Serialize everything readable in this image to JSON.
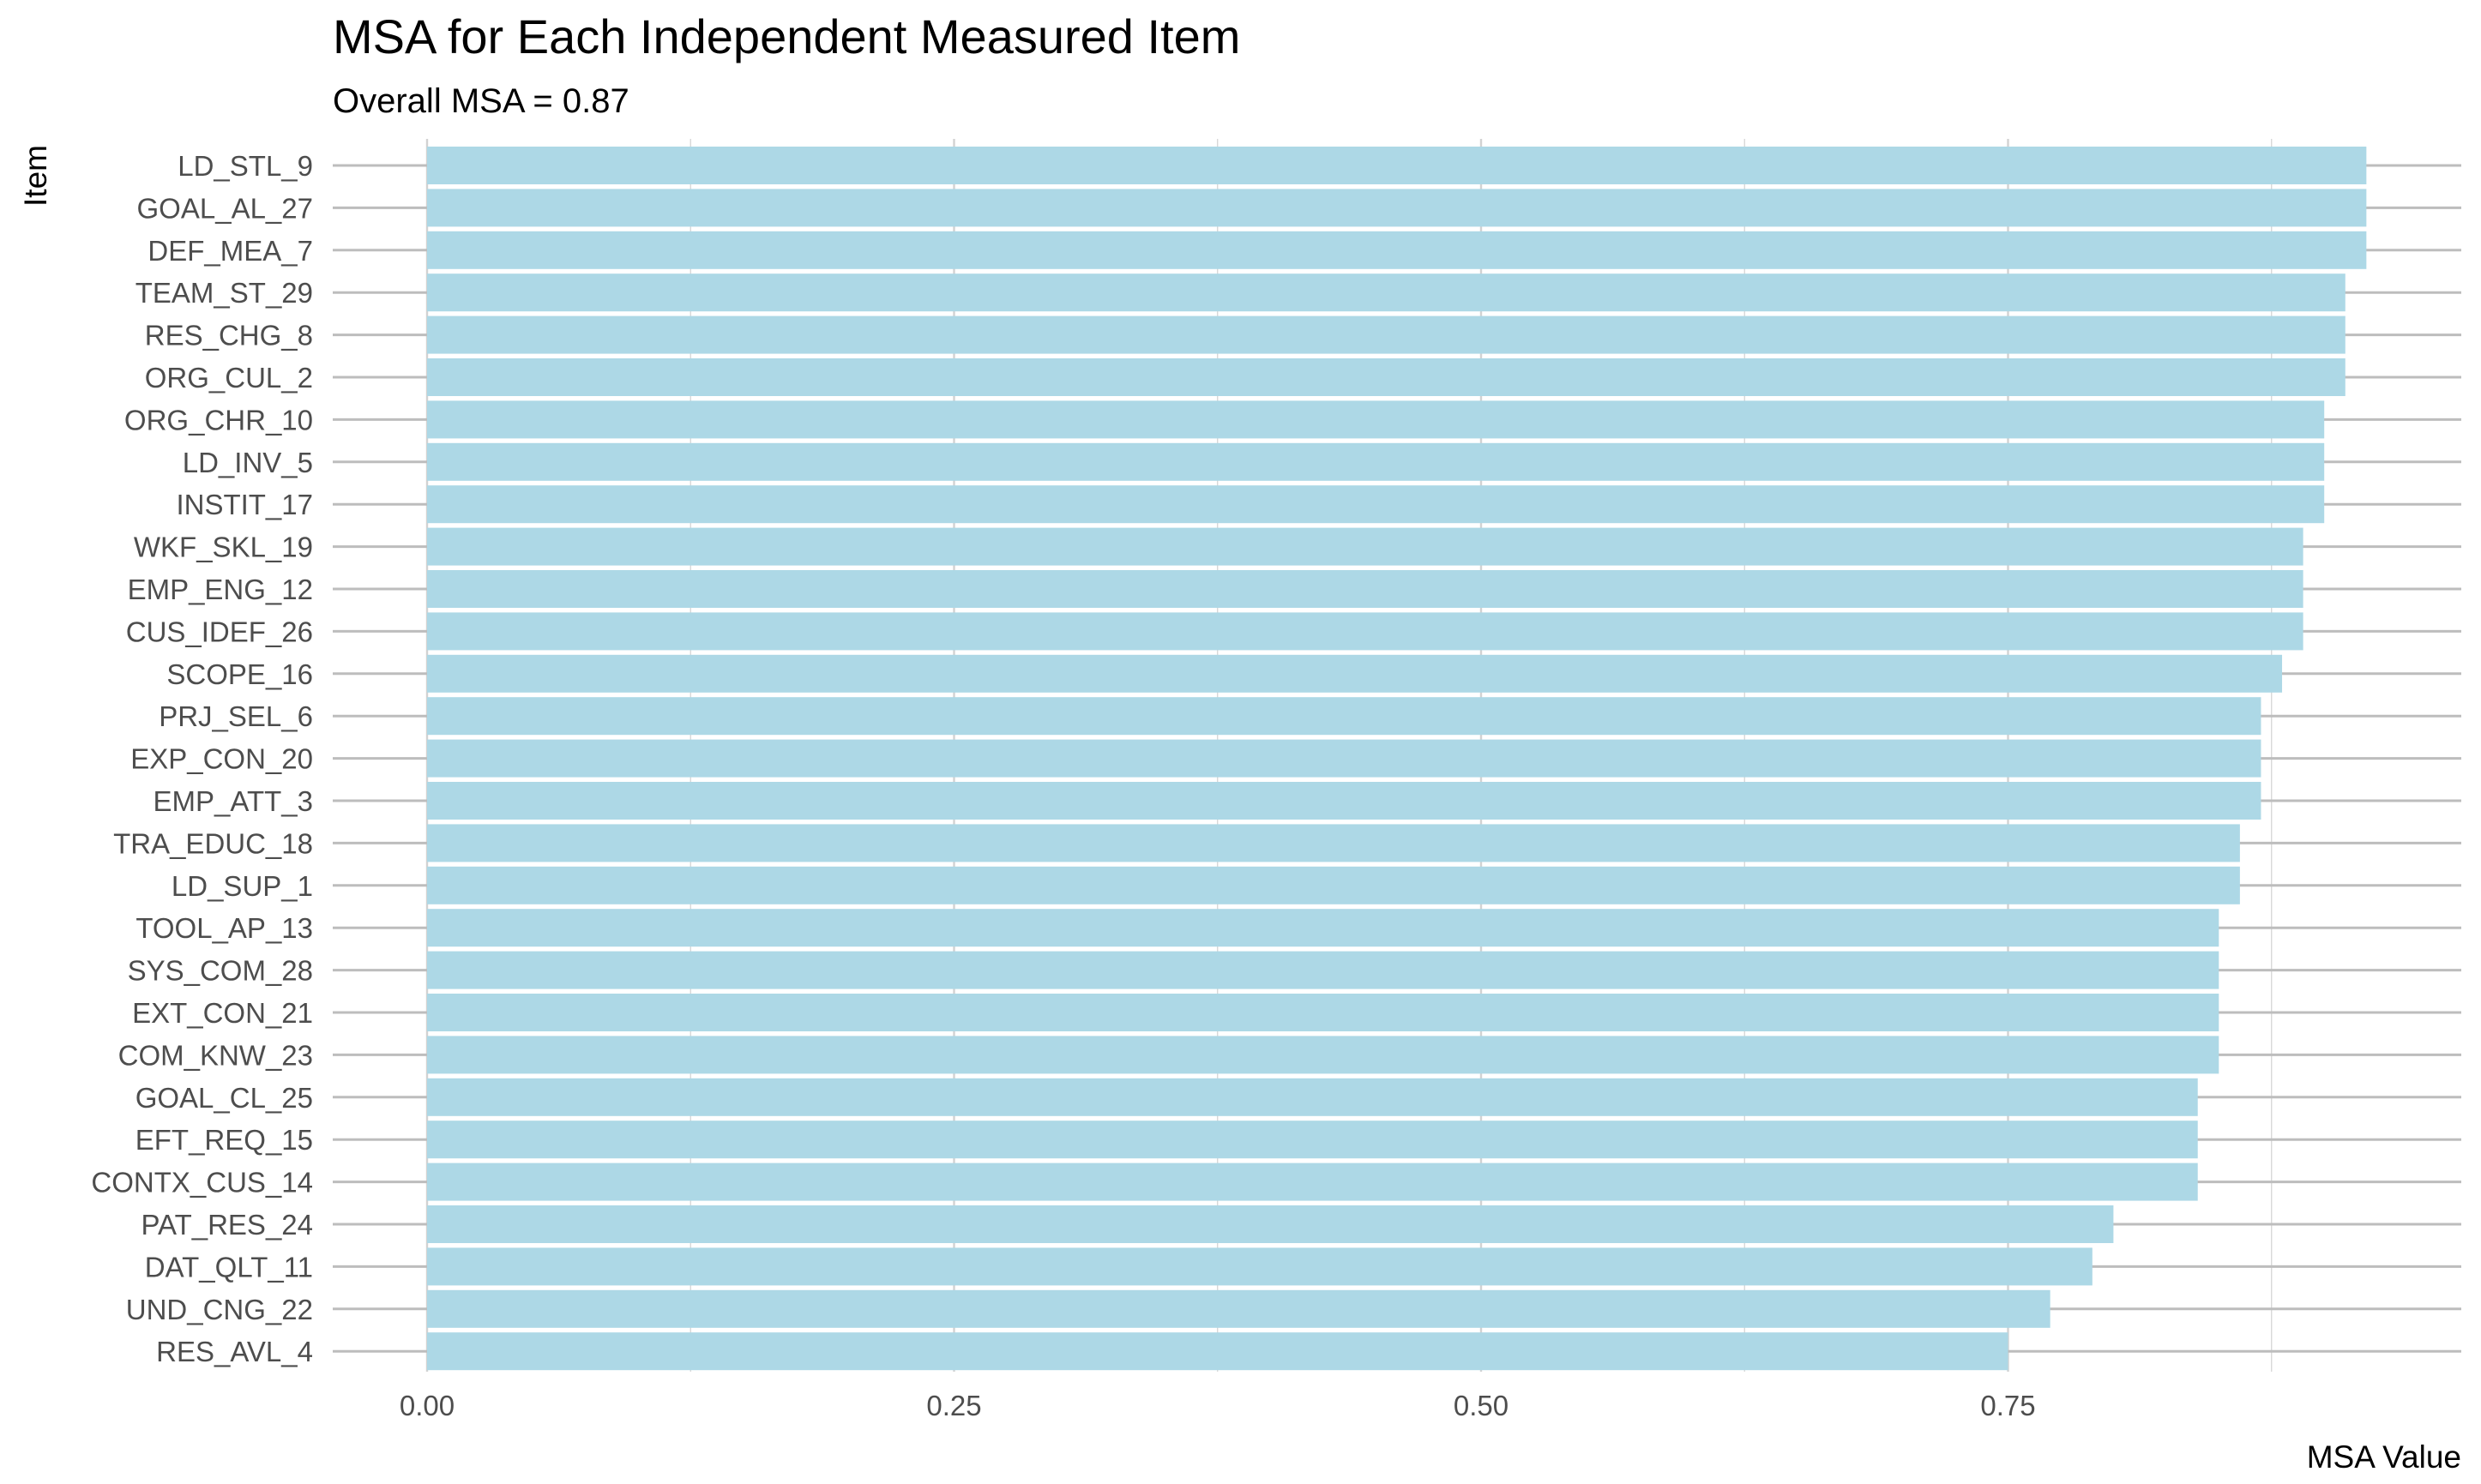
{
  "chart_data": {
    "type": "bar",
    "orientation": "horizontal",
    "title": "MSA for Each Independent Measured Item",
    "subtitle": "Overall MSA =  0.87",
    "xlabel": "MSA Value",
    "ylabel": "Item",
    "xlim": [
      0,
      0.96
    ],
    "x_ticks": [
      "0.00",
      "0.25",
      "0.50",
      "0.75"
    ],
    "bar_color": "#add8e6",
    "grid": true,
    "categories": [
      "LD_STL_9",
      "GOAL_AL_27",
      "DEF_MEA_7",
      "TEAM_ST_29",
      "RES_CHG_8",
      "ORG_CUL_2",
      "ORG_CHR_10",
      "LD_INV_5",
      "INSTIT_17",
      "WKF_SKL_19",
      "EMP_ENG_12",
      "CUS_IDEF_26",
      "SCOPE_16",
      "PRJ_SEL_6",
      "EXP_CON_20",
      "EMP_ATT_3",
      "TRA_EDUC_18",
      "LD_SUP_1",
      "TOOL_AP_13",
      "SYS_COM_28",
      "EXT_CON_21",
      "COM_KNW_23",
      "GOAL_CL_25",
      "EFT_REQ_15",
      "CONTX_CUS_14",
      "PAT_RES_24",
      "DAT_QLT_11",
      "UND_CNG_22",
      "RES_AVL_4"
    ],
    "values": [
      0.92,
      0.92,
      0.92,
      0.91,
      0.91,
      0.91,
      0.9,
      0.9,
      0.9,
      0.89,
      0.89,
      0.89,
      0.88,
      0.87,
      0.87,
      0.87,
      0.86,
      0.86,
      0.85,
      0.85,
      0.85,
      0.85,
      0.84,
      0.84,
      0.84,
      0.8,
      0.79,
      0.77,
      0.75
    ]
  }
}
